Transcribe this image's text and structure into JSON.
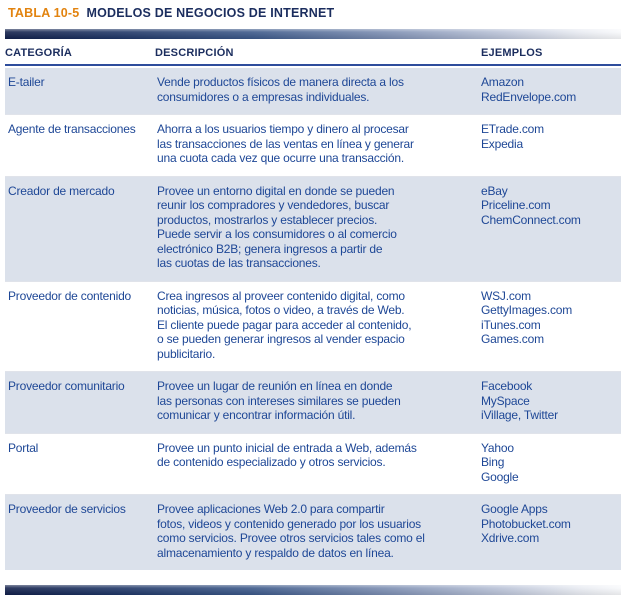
{
  "title": {
    "tag": "TABLA 10-5",
    "text": "MODELOS DE NEGOCIOS DE INTERNET"
  },
  "colors": {
    "accent_orange": "#e2830f",
    "heading_navy": "#1b2d5e",
    "body_blue": "#1e4796",
    "row_highlight": "#dbe1eb",
    "header_underline": "#2e4d9c"
  },
  "table": {
    "columns": [
      "CATEGORÍA",
      "DESCRIPCIÓN",
      "EJEMPLOS"
    ],
    "rows": [
      {
        "category": "E-tailer",
        "description": "Vende productos físicos de manera directa a los\nconsumidores o a empresas individuales.",
        "examples": [
          "Amazon",
          "RedEnvelope.com"
        ]
      },
      {
        "category": "Agente de transacciones",
        "description": "Ahorra a los usuarios tiempo y dinero al procesar\nlas transacciones de las ventas en línea y generar\nuna cuota cada vez que ocurre una transacción.",
        "examples": [
          "ETrade.com",
          "Expedia"
        ]
      },
      {
        "category": "Creador de mercado",
        "description": "Provee un entorno digital en donde se pueden\nreunir los compradores y vendedores, buscar\nproductos, mostrarlos y establecer precios.\nPuede servir a los consumidores o al comercio\nelectrónico B2B; genera ingresos a partir de\nlas cuotas de las transacciones.",
        "examples": [
          "eBay",
          "Priceline.com",
          "ChemConnect.com"
        ]
      },
      {
        "category": "Proveedor de contenido",
        "description": "Crea ingresos al proveer contenido digital, como\nnoticias, música, fotos o video, a través de Web.\nEl cliente puede pagar para acceder al contenido,\no se pueden generar ingresos al vender espacio\npublicitario.",
        "examples": [
          "WSJ.com",
          "GettyImages.com",
          "iTunes.com",
          "Games.com"
        ]
      },
      {
        "category": "Proveedor comunitario",
        "description": "Provee un lugar de reunión en línea en donde\nlas personas con intereses similares se pueden\ncomunicar y encontrar información útil.",
        "examples": [
          "Facebook",
          "MySpace",
          "iVillage, Twitter"
        ]
      },
      {
        "category": "Portal",
        "description": "Provee un punto inicial de entrada a Web, además\nde contenido especializado y otros servicios.",
        "examples": [
          "Yahoo",
          "Bing",
          "Google"
        ]
      },
      {
        "category": "Proveedor de servicios",
        "description": "Provee aplicaciones Web 2.0 para compartir\nfotos, videos y contenido generado por los usuarios\ncomo servicios. Provee otros servicios tales como el\nalmacenamiento y respaldo de datos en línea.",
        "examples": [
          "Google Apps",
          "Photobucket.com",
          "Xdrive.com"
        ]
      }
    ]
  }
}
